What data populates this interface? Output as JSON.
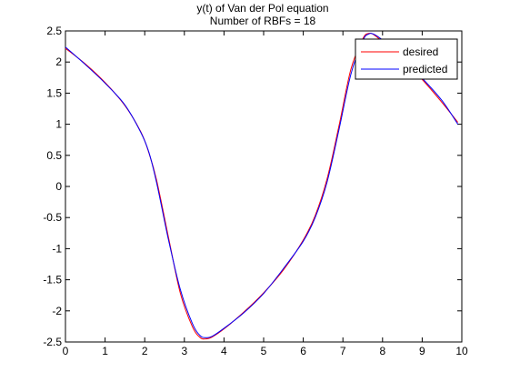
{
  "chart_data": {
    "type": "line",
    "title": "y(t) of Van der Pol equation",
    "subtitle": "Number of RBFs = 18",
    "xlabel": "",
    "ylabel": "",
    "xlim": [
      0,
      10
    ],
    "ylim": [
      -2.5,
      2.5
    ],
    "x_ticks": [
      "0",
      "1",
      "2",
      "3",
      "4",
      "5",
      "6",
      "7",
      "8",
      "9",
      "10"
    ],
    "y_ticks": [
      "2.5",
      "2",
      "1.5",
      "1",
      "0.5",
      "0",
      "-0.5",
      "-1",
      "-1.5",
      "-2",
      "-2.5"
    ],
    "grid": false,
    "legend_position": "top-right",
    "series": [
      {
        "name": "desired",
        "color": "#ff0000",
        "x": [
          0,
          0.5,
          1.0,
          1.5,
          1.9,
          2.1,
          2.3,
          2.6,
          2.9,
          3.2,
          3.4,
          3.55,
          3.7,
          4.0,
          4.5,
          5.0,
          5.5,
          6.0,
          6.3,
          6.6,
          6.9,
          7.2,
          7.5,
          7.65,
          7.8,
          8.1,
          8.5,
          9.0,
          9.5,
          9.9
        ],
        "values": [
          2.22,
          1.97,
          1.67,
          1.3,
          0.88,
          0.55,
          0.1,
          -0.82,
          -1.72,
          -2.25,
          -2.43,
          -2.45,
          -2.42,
          -2.29,
          -2.02,
          -1.71,
          -1.34,
          -0.86,
          -0.47,
          0.12,
          0.97,
          1.88,
          2.37,
          2.46,
          2.43,
          2.27,
          2.04,
          1.72,
          1.35,
          1.03
        ]
      },
      {
        "name": "predicted",
        "color": "#0000ff",
        "x": [
          0,
          0.5,
          1.0,
          1.5,
          1.9,
          2.1,
          2.3,
          2.6,
          2.9,
          3.2,
          3.4,
          3.55,
          3.7,
          4.0,
          4.5,
          5.0,
          5.5,
          6.0,
          6.3,
          6.6,
          6.9,
          7.2,
          7.5,
          7.65,
          7.8,
          8.1,
          8.5,
          9.0,
          9.5,
          9.9
        ],
        "values": [
          2.24,
          1.96,
          1.66,
          1.31,
          0.87,
          0.56,
          0.06,
          -0.86,
          -1.66,
          -2.2,
          -2.4,
          -2.43,
          -2.41,
          -2.28,
          -2.03,
          -1.72,
          -1.32,
          -0.88,
          -0.5,
          0.07,
          0.91,
          1.8,
          2.34,
          2.45,
          2.44,
          2.3,
          2.06,
          1.74,
          1.38,
          1.0
        ]
      }
    ]
  }
}
